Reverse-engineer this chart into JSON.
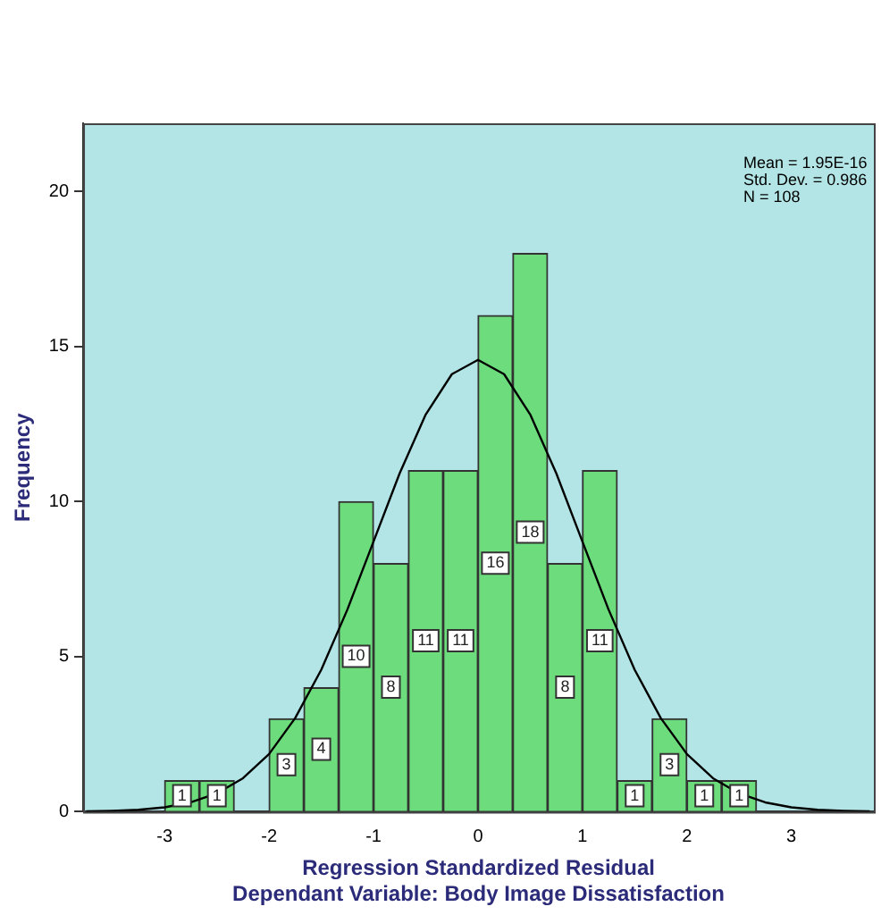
{
  "chart_data": {
    "type": "histogram",
    "xlabel": "Regression Standardized Residual\nDependant Variable: Body Image Dissatisfaction",
    "ylabel": "Frequency",
    "bins": [
      -3,
      -2.667,
      -2.333,
      -2,
      -1.667,
      -1.333,
      -1,
      -0.667,
      -0.333,
      0,
      0.333,
      0.667,
      1,
      1.333,
      1.667,
      2,
      2.333,
      2.667
    ],
    "series": [
      {
        "color": "#6cdc7c",
        "values": [
          1,
          1,
          0,
          3,
          4,
          10,
          8,
          11,
          11,
          16,
          18,
          8,
          11,
          1,
          3,
          1,
          1
        ],
        "value_labels": [
          "1",
          "1",
          null,
          "3",
          "4",
          "10",
          "8",
          "11",
          "11",
          "16",
          "18",
          "8",
          "11",
          "1",
          "3",
          "1",
          "1"
        ]
      },
      {
        "type": "line",
        "color": "#000000",
        "x": [
          -3.75,
          -3.5,
          -3.25,
          -3,
          -2.75,
          -2.5,
          -2.25,
          -2,
          -1.75,
          -1.5,
          -1.25,
          -1,
          -0.75,
          -0.5,
          -0.25,
          0,
          0.25,
          0.5,
          0.75,
          1,
          1.25,
          1.5,
          1.75,
          2,
          2.25,
          2.5,
          2.75,
          3,
          3.25,
          3.5,
          3.75
        ],
        "values": [
          0.01,
          0.03,
          0.06,
          0.14,
          0.3,
          0.59,
          1.08,
          1.86,
          3.02,
          4.58,
          6.52,
          8.71,
          10.91,
          12.81,
          14.11,
          14.57,
          14.11,
          12.81,
          10.91,
          8.71,
          6.52,
          4.58,
          3.02,
          1.86,
          1.08,
          0.59,
          0.3,
          0.14,
          0.06,
          0.03,
          0.01
        ]
      }
    ],
    "xlim": [
      -3.78,
      3.79
    ],
    "xticks": [
      -3,
      -2,
      -1,
      0,
      1,
      2,
      3
    ],
    "ylim": [
      0,
      22.2
    ],
    "yticks": [
      0,
      5,
      10,
      15,
      20
    ],
    "annotations": [
      "Mean = 1.95E-16",
      "Std. Dev. = 0.986",
      "N = 108"
    ],
    "grid": false,
    "legend": false
  }
}
